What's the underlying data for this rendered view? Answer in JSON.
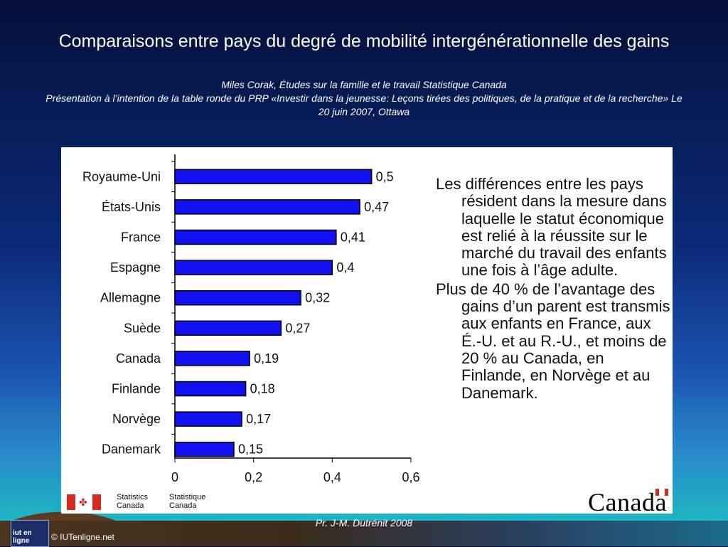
{
  "slide": {
    "title": "Comparaisons entre pays du degré de mobilité  intergénérationnelle des gains",
    "subtitle_line1": "Miles Corak, Études sur la famille et le travail  Statistique Canada",
    "subtitle_line2": "Présentation à  l’intention de la table ronde du PRP «Investir dans la jeunesse: Leçons tirées des politiques, de la pratique et de la recherche» Le 20 juin 2007, Ottawa",
    "footer": "Pr.  J-M. Dutrénit  2008",
    "copyright": "© IUTenligne.net",
    "iut_logo_text": "iut en ligne"
  },
  "note": {
    "paragraph1": "Les différences entre les pays résident dans la mesure dans laquelle le statut économique est relié à la réussite sur le marché du travail des enfants une fois à l’âge adulte.",
    "paragraph2": "Plus de 40 % de l’avantage des gains d’un parent est transmis aux enfants en France, aux É.-U. et au R.-U., et moins de 20 % au Canada, en Finlande, en Norvège et au Danemark."
  },
  "logos": {
    "stat_en": "Statistics\nCanada",
    "stat_fr": "Statistique\nCanada",
    "wordmark": "Canada"
  },
  "colors": {
    "bar_fill": "#1010f0",
    "bar_stroke": "#000000",
    "flag_red": "#d52b1e"
  },
  "chart_data": {
    "type": "bar",
    "orientation": "horizontal",
    "categories": [
      "Royaume-Uni",
      "États-Unis",
      "France",
      "Espagne",
      "Allemagne",
      "Suède",
      "Canada",
      "Finlande",
      "Norvège",
      "Danemark"
    ],
    "values": [
      0.5,
      0.47,
      0.41,
      0.4,
      0.32,
      0.27,
      0.19,
      0.18,
      0.17,
      0.15
    ],
    "value_labels": [
      "0,5",
      "0,47",
      "0,41",
      "0,4",
      "0,32",
      "0,27",
      "0,19",
      "0,18",
      "0,17",
      "0,15"
    ],
    "xlim": [
      0,
      0.6
    ],
    "x_ticks": [
      0,
      0.2,
      0.4,
      0.6
    ],
    "x_tick_labels": [
      "0",
      "0,2",
      "0,4",
      "0,6"
    ],
    "grid": false,
    "legend": "none"
  }
}
